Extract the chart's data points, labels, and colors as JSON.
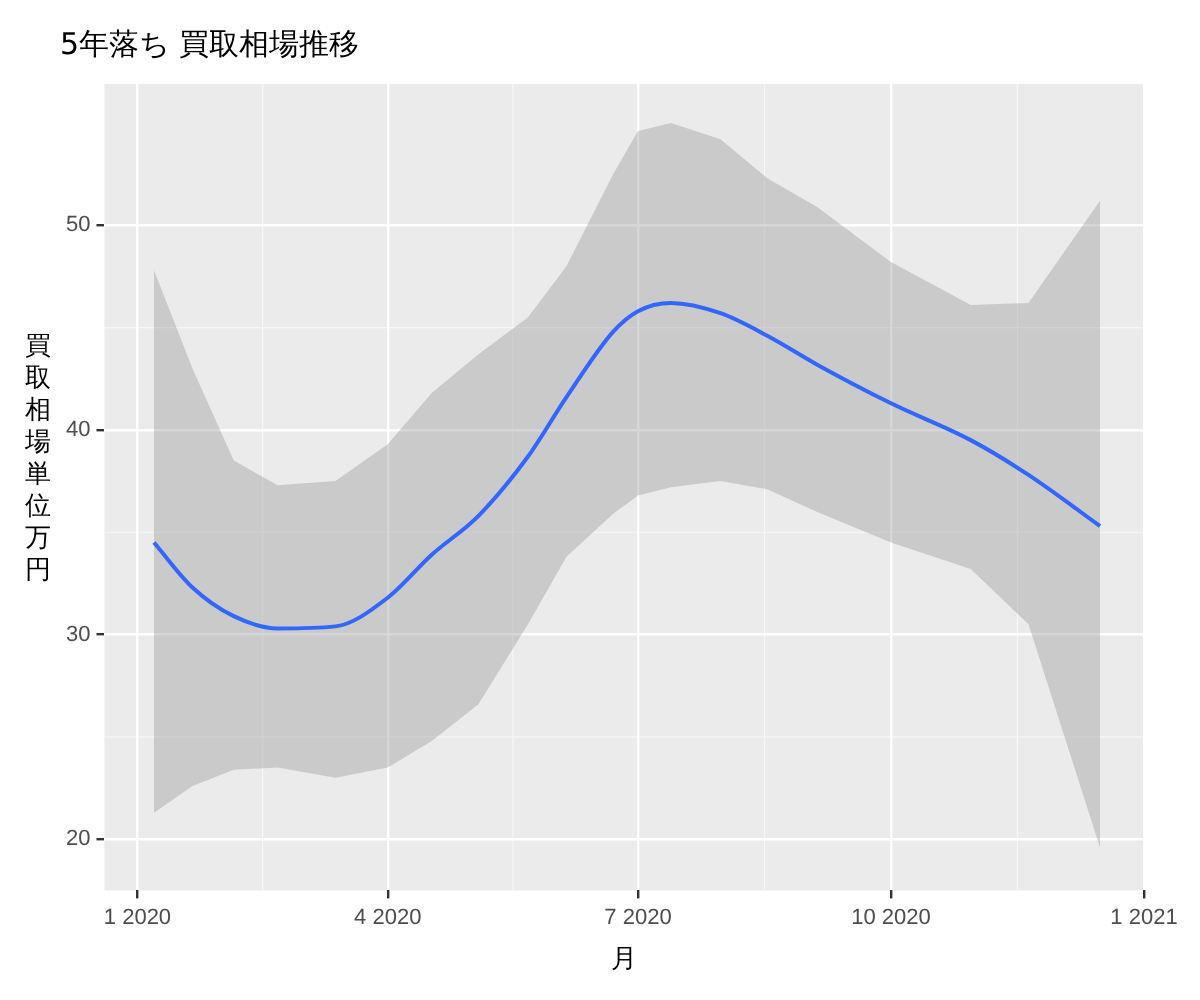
{
  "chart_data": {
    "type": "line",
    "title": "5年落ち 買取相場推移",
    "xlabel": "月",
    "ylabel": "買取相場単位万円",
    "x": [
      "2020-01-07",
      "2020-01-21",
      "2020-02-05",
      "2020-02-21",
      "2020-03-13",
      "2020-04-01",
      "2020-04-17",
      "2020-05-04",
      "2020-05-22",
      "2020-06-05",
      "2020-06-22",
      "2020-07-01",
      "2020-07-13",
      "2020-07-31",
      "2020-08-17",
      "2020-09-04",
      "2020-10-01",
      "2020-10-30",
      "2020-11-20",
      "2020-12-16"
    ],
    "series": [
      {
        "color": "#3366ff",
        "values": [
          34.5,
          32.3,
          30.9,
          30.3,
          30.4,
          31.8,
          33.9,
          35.8,
          38.7,
          41.6,
          44.8,
          45.8,
          46.2,
          45.7,
          44.6,
          43.2,
          41.3,
          39.5,
          37.8,
          35.3
        ],
        "lower": [
          21.3,
          22.6,
          23.4,
          23.5,
          23.0,
          23.5,
          24.8,
          26.6,
          30.5,
          33.8,
          35.9,
          36.8,
          37.2,
          37.5,
          37.1,
          36.0,
          34.5,
          33.2,
          30.5,
          19.6
        ],
        "upper": [
          47.8,
          43.0,
          38.5,
          37.3,
          37.5,
          39.3,
          41.8,
          43.7,
          45.5,
          48.0,
          52.5,
          54.6,
          55.0,
          54.2,
          52.3,
          50.9,
          48.2,
          46.1,
          46.2,
          51.2
        ]
      }
    ],
    "xlim": [
      "2019-12-20",
      "2021-01-01"
    ],
    "xticks": [
      {
        "value": "2020-01-01",
        "label": "1 2020"
      },
      {
        "value": "2020-04-01",
        "label": "4 2020"
      },
      {
        "value": "2020-07-01",
        "label": "7 2020"
      },
      {
        "value": "2020-10-01",
        "label": "10 2020"
      },
      {
        "value": "2021-01-01",
        "label": "1 2021"
      }
    ],
    "ylim": [
      17.5,
      56.9
    ],
    "yticks": [
      20,
      30,
      40,
      50
    ],
    "grid": true
  }
}
